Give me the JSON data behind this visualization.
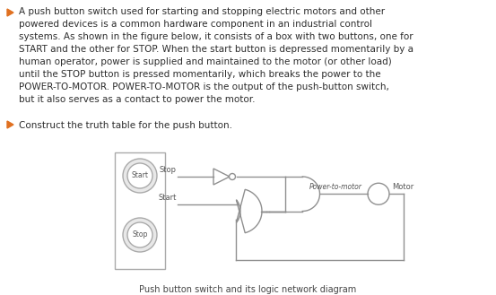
{
  "bg_color": "#ffffff",
  "text_color": "#2d2d2d",
  "bullet_color": "#e07020",
  "para1": "A push button switch used for starting and stopping electric motors and other\npowered devices is a common hardware component in an industrial control\nsystems. As shown in the figure below, it consists of a box with two buttons, one for\nSTART and the other for STOP. When the start button is depressed momentarily by a\nhuman operator, power is supplied and maintained to the motor (or other load)\nuntil the STOP button is pressed momentarily, which breaks the power to the\nPOWER-TO-MOTOR. POWER-TO-MOTOR is the output of the push-button switch,\nbut it also serves as a contact to power the motor.",
  "para2": "Construct the truth table for the push button.",
  "caption": "Push button switch and its logic network diagram",
  "diagram_line_color": "#909090",
  "diagram_text_color": "#555555"
}
